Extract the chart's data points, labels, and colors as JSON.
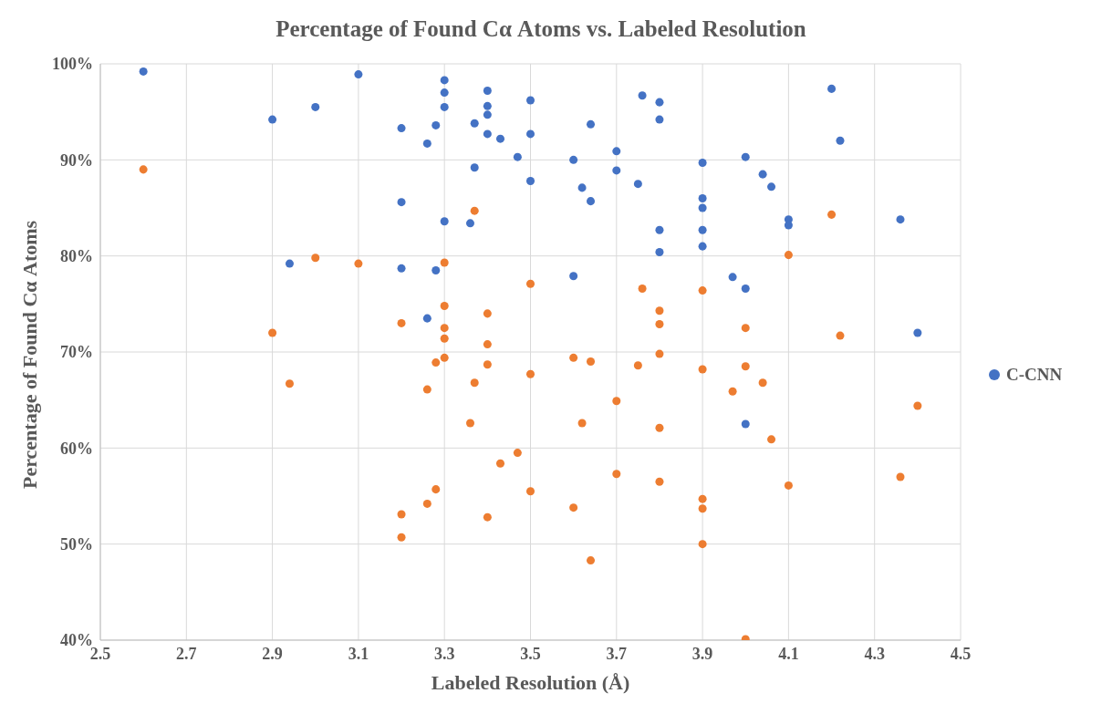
{
  "chart_data": {
    "type": "scatter",
    "title": "Percentage of Found Cα  Atoms vs. Labeled Resolution",
    "xlabel": "Labeled Resolution (Å)",
    "ylabel": "Percentage of Found Cα Atoms",
    "xlim": [
      2.5,
      4.5
    ],
    "xticks": [
      2.5,
      2.7,
      2.9,
      3.1,
      3.3,
      3.5,
      3.7,
      3.9,
      4.1,
      4.3,
      4.5
    ],
    "ylim": [
      40,
      100
    ],
    "yticks": [
      {
        "value": 40,
        "label": "40%"
      },
      {
        "value": 50,
        "label": "50%"
      },
      {
        "value": 60,
        "label": "60%"
      },
      {
        "value": 70,
        "label": "70%"
      },
      {
        "value": 80,
        "label": "80%"
      },
      {
        "value": 90,
        "label": "90%"
      },
      {
        "value": 100,
        "label": "100%"
      }
    ],
    "grid": true,
    "legend": "right",
    "marker": "circle",
    "series": [
      {
        "name": "C-CNN",
        "color": "#4472c4",
        "x": [
          2.6,
          2.9,
          3.0,
          3.1,
          3.2,
          3.2,
          2.94,
          3.2,
          3.26,
          3.26,
          3.28,
          3.28,
          3.3,
          3.3,
          3.3,
          3.3,
          3.36,
          3.37,
          3.37,
          3.4,
          3.4,
          3.4,
          3.4,
          3.43,
          3.47,
          3.5,
          3.5,
          3.5,
          3.6,
          3.6,
          3.62,
          3.64,
          3.64,
          3.7,
          3.7,
          3.75,
          3.76,
          3.8,
          3.8,
          3.8,
          3.8,
          3.9,
          3.9,
          3.9,
          3.9,
          3.9,
          3.97,
          4.0,
          4.0,
          4.0,
          4.04,
          4.06,
          4.1,
          4.1,
          4.2,
          4.22,
          4.36,
          4.4
        ],
        "values": [
          99.2,
          94.2,
          95.5,
          98.9,
          93.3,
          85.6,
          79.2,
          78.7,
          73.5,
          91.7,
          93.6,
          78.5,
          98.3,
          97.0,
          95.5,
          83.6,
          83.4,
          93.8,
          89.2,
          97.2,
          95.6,
          94.7,
          92.7,
          92.2,
          90.3,
          96.2,
          92.7,
          87.8,
          90.0,
          77.9,
          87.1,
          93.7,
          85.7,
          90.9,
          88.9,
          87.5,
          96.7,
          96.0,
          94.2,
          82.7,
          80.4,
          89.7,
          86.0,
          85.0,
          82.7,
          81.0,
          77.8,
          90.3,
          76.6,
          62.5,
          88.5,
          87.2,
          83.8,
          83.2,
          97.4,
          92.0,
          83.8,
          72.0
        ]
      },
      {
        "color": "#ed7d31",
        "x": [
          2.6,
          2.9,
          2.94,
          3.0,
          3.1,
          3.2,
          3.2,
          3.2,
          3.26,
          3.26,
          3.28,
          3.28,
          3.3,
          3.3,
          3.3,
          3.3,
          3.3,
          3.36,
          3.37,
          3.37,
          3.4,
          3.4,
          3.4,
          3.4,
          3.43,
          3.47,
          3.5,
          3.5,
          3.5,
          3.6,
          3.6,
          3.62,
          3.64,
          3.64,
          3.7,
          3.7,
          3.75,
          3.76,
          3.8,
          3.8,
          3.8,
          3.8,
          3.8,
          3.9,
          3.9,
          3.9,
          3.9,
          3.9,
          3.97,
          4.0,
          4.0,
          4.0,
          4.04,
          4.06,
          4.1,
          4.1,
          4.2,
          4.22,
          4.36,
          4.4
        ],
        "values": [
          89.0,
          72.0,
          66.7,
          79.8,
          79.2,
          73.0,
          53.1,
          50.7,
          66.1,
          54.2,
          68.9,
          55.7,
          79.3,
          74.8,
          72.5,
          71.4,
          69.4,
          62.6,
          84.7,
          66.8,
          74.0,
          70.8,
          68.7,
          52.8,
          58.4,
          59.5,
          77.1,
          67.7,
          55.5,
          69.4,
          53.8,
          62.6,
          69.0,
          48.3,
          64.9,
          57.3,
          68.6,
          76.6,
          74.3,
          72.9,
          69.8,
          62.1,
          56.5,
          76.4,
          68.2,
          54.7,
          53.7,
          50.0,
          65.9,
          72.5,
          68.5,
          40.1,
          66.8,
          60.9,
          80.1,
          56.1,
          84.3,
          71.7,
          57.0,
          64.4
        ]
      }
    ]
  }
}
